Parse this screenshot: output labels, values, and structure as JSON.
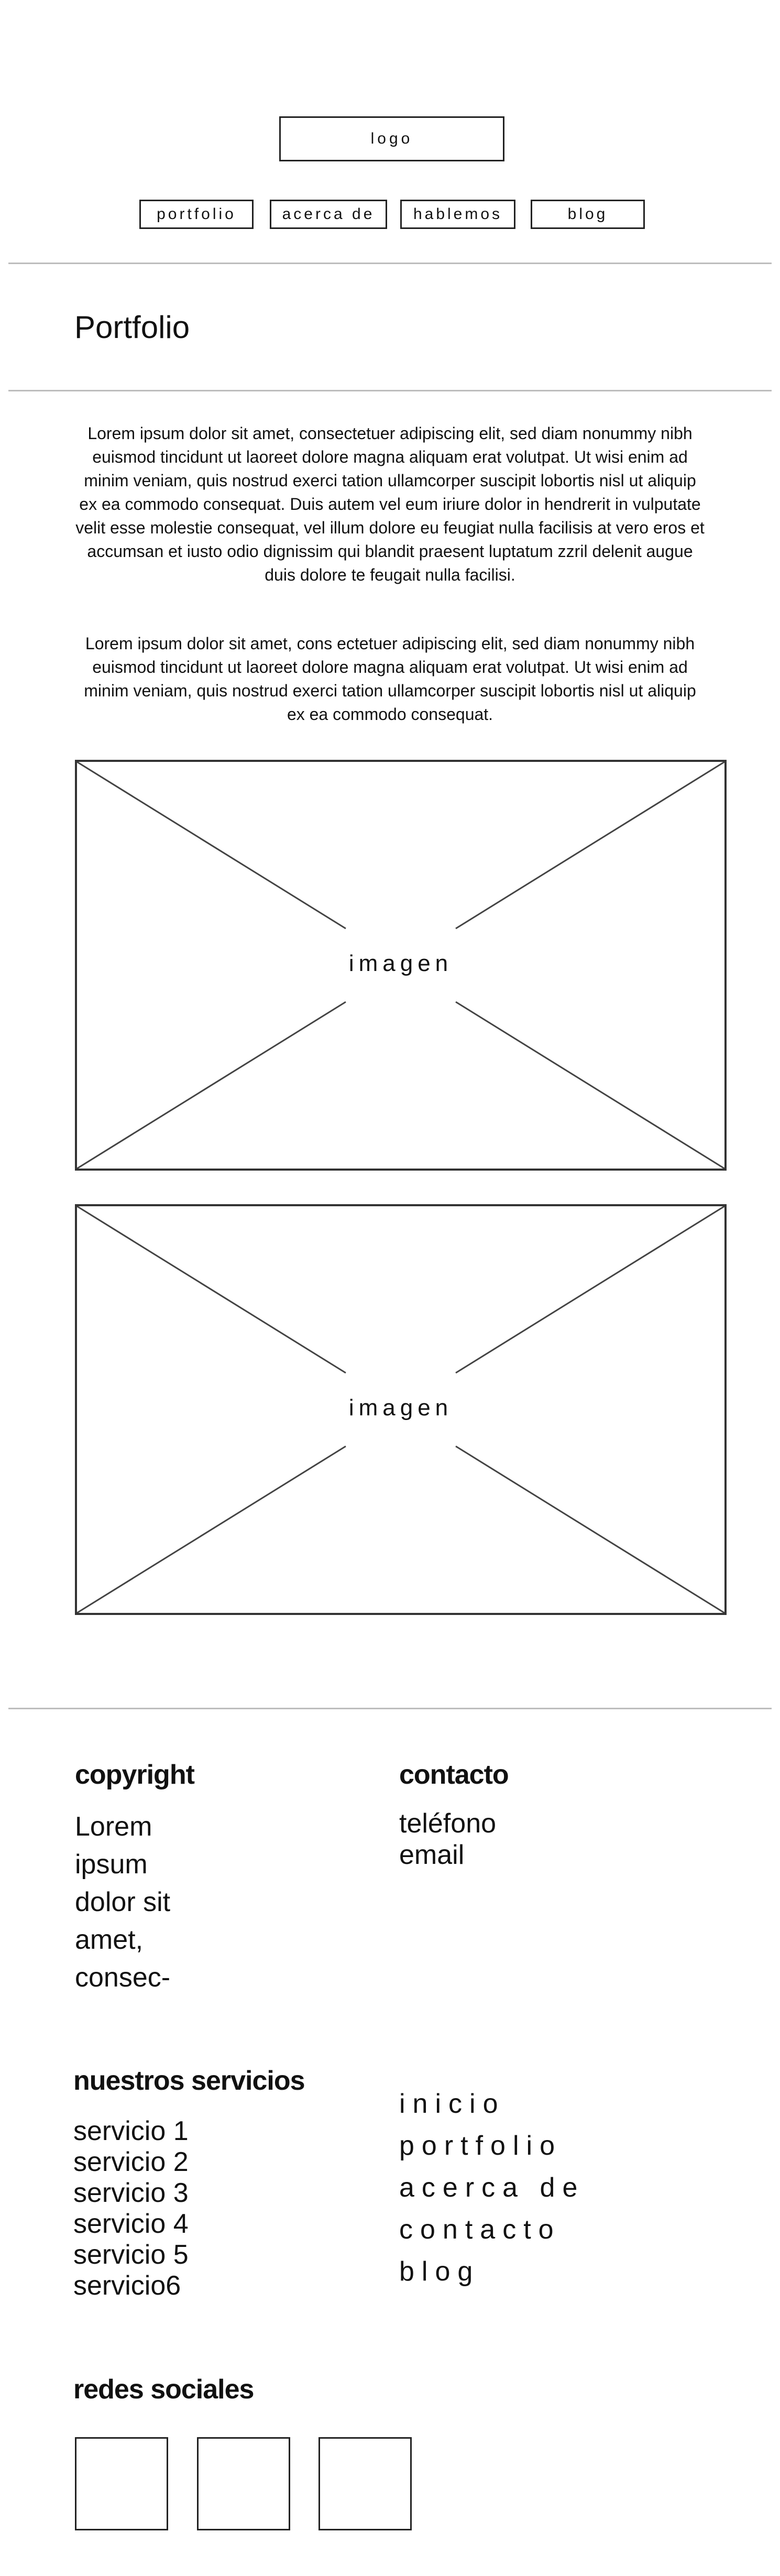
{
  "header": {
    "logo_label": "logo",
    "nav": [
      "portfolio",
      "acerca de",
      "hablemos",
      "blog"
    ]
  },
  "page": {
    "title": "Portfolio"
  },
  "content": {
    "paragraph1": "Lorem ipsum dolor sit amet, consectetuer adipiscing elit, sed diam nonummy nibh euismod tincidunt ut laoreet dolore magna aliquam erat volutpat. Ut wisi enim ad minim veniam, quis nostrud exerci tation ullamcorper suscipit lobortis nisl ut aliquip ex ea commodo consequat. Duis autem vel eum iriure dolor in hendrerit in vulputate velit esse molestie consequat, vel illum dolore eu feugiat nulla facilisis at vero eros et accumsan et iusto odio dignissim qui blandit praesent luptatum zzril delenit augue duis dolore te feugait nulla facilisi.",
    "paragraph2": "Lorem ipsum dolor sit amet, cons ectetuer adipiscing elit, sed diam nonummy nibh euismod tincidunt ut laoreet dolore magna aliquam erat volutpat. Ut wisi enim ad minim veniam, quis nostrud exerci tation ullamcorper suscipit lobortis nisl ut aliquip ex ea commodo consequat.",
    "image1_label": "imagen",
    "image2_label": "imagen"
  },
  "footer": {
    "copyright_heading": "copyright",
    "copyright_lines": [
      "Lorem",
      "ipsum",
      "dolor sit",
      "amet,",
      "consec-"
    ],
    "contact_heading": "contacto",
    "contact_lines": [
      "teléfono",
      "email"
    ],
    "services_heading": "nuestros servicios",
    "services": [
      "servicio 1",
      "servicio 2",
      "servicio 3",
      "servicio 4",
      "servicio 5",
      "servicio6"
    ],
    "site_links": [
      "inicio",
      "portfolio",
      "acerca de",
      "contacto",
      "blog"
    ],
    "social_heading": "redes sociales"
  }
}
